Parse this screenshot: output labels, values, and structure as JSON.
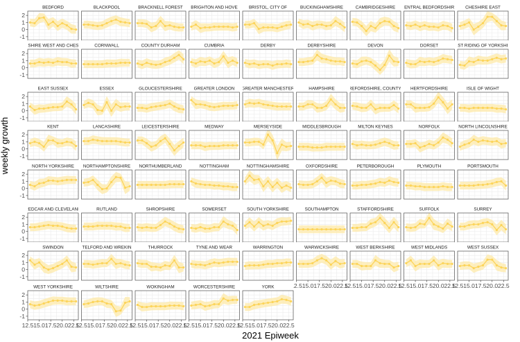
{
  "chart_data": {
    "type": "line",
    "xlabel": "2021 Epiweek",
    "ylabel": "weekly growth",
    "x": [
      13,
      14,
      15,
      16,
      17,
      18,
      19,
      20,
      21,
      22,
      23
    ],
    "xlim": [
      12.5,
      23.5
    ],
    "ylim": [
      -1.5,
      2.6
    ],
    "x_ticks": [
      12.5,
      15,
      17.5,
      20,
      22.5
    ],
    "x_tick_labels": [
      "12.5",
      "15.0",
      "17.5",
      "20.0",
      "22.5"
    ],
    "y_ticks": [
      -1,
      0,
      1,
      2
    ],
    "y_tick_labels": [
      "-1",
      "0",
      "1",
      "2"
    ],
    "grid": true,
    "colors": {
      "line": "#fcd45a",
      "ribbon": "#fde9a8",
      "panel_border": "#4d4d4d",
      "strip_bg": "#ffffff",
      "grid": "#ebebeb"
    },
    "panels": [
      {
        "name": "BEDFORD",
        "values": [
          1.0,
          0.9,
          1.6,
          1.7,
          0.7,
          1.1,
          0.5,
          0.9,
          0.6,
          0.1,
          0.0
        ]
      },
      {
        "name": "BLACKPOOL",
        "values": [
          0.7,
          0.7,
          0.6,
          0.5,
          0.6,
          0.9,
          1.2,
          1.4,
          1.1,
          1.0,
          0.9
        ]
      },
      {
        "name": "BRACKNELL FOREST",
        "values": [
          0.9,
          0.9,
          0.8,
          0.3,
          0.5,
          1.2,
          0.5,
          0.6,
          0.4,
          0.3,
          0.3
        ]
      },
      {
        "name": "BRIGHTON AND HOVE",
        "values": [
          0.4,
          0.7,
          0.2,
          0.3,
          0.3,
          0.4,
          0.4,
          0.4,
          0.4,
          0.3,
          0.4
        ]
      },
      {
        "name": "BRISTOL, CITY OF",
        "values": [
          0.7,
          0.7,
          0.9,
          0.1,
          0.3,
          0.3,
          0.3,
          0.2,
          0.4,
          0.6,
          0.7
        ]
      },
      {
        "name": "BUCKINGHAMSHIRE",
        "values": [
          1.0,
          0.7,
          0.8,
          0.5,
          0.7,
          0.7,
          0.5,
          0.6,
          1.2,
          0.8,
          0.3
        ]
      },
      {
        "name": "CAMBRIDGESHIRE",
        "values": [
          1.1,
          1.0,
          0.5,
          -0.2,
          0.5,
          0.2,
          0.9,
          1.2,
          1.1,
          0.5,
          0.2
        ]
      },
      {
        "name": "CENTRAL BEDFORDSHIRE",
        "values": [
          0.6,
          0.5,
          0.7,
          0.4,
          0.6,
          0.4,
          0.4,
          0.3,
          0.6,
          0.5,
          0.2
        ]
      },
      {
        "name": "CHESHIRE EAST",
        "values": [
          0.5,
          0.7,
          1.0,
          0.0,
          0.4,
          0.9,
          1.8,
          1.8,
          1.2,
          0.6,
          0.5
        ]
      },
      {
        "name": "CHESHIRE WEST AND CHESTER",
        "values": [
          0.6,
          0.6,
          0.8,
          0.7,
          0.8,
          0.7,
          0.9,
          0.8,
          0.8,
          0.6,
          0.6
        ]
      },
      {
        "name": "CORNWALL",
        "values": [
          0.5,
          0.5,
          0.5,
          0.5,
          0.5,
          0.6,
          0.6,
          0.6,
          0.7,
          0.7,
          0.7
        ]
      },
      {
        "name": "COUNTY DURHAM",
        "values": [
          0.6,
          0.4,
          0.7,
          0.5,
          0.4,
          0.5,
          0.8,
          1.0,
          1.4,
          1.8,
          1.2
        ]
      },
      {
        "name": "CUMBRIA",
        "values": [
          0.8,
          0.6,
          0.9,
          0.8,
          1.0,
          0.6,
          0.8,
          1.6,
          0.7,
          1.0,
          0.7
        ]
      },
      {
        "name": "DERBY",
        "values": [
          0.7,
          0.5,
          0.6,
          0.4,
          0.5,
          0.5,
          0.3,
          0.5,
          0.5,
          0.6,
          0.5
        ]
      },
      {
        "name": "DERBYSHIRE",
        "values": [
          0.8,
          0.8,
          0.9,
          1.0,
          1.8,
          1.3,
          1.2,
          1.0,
          0.9,
          0.9,
          0.8
        ]
      },
      {
        "name": "DEVON",
        "values": [
          0.6,
          0.5,
          0.9,
          1.0,
          0.8,
          0.3,
          -0.3,
          0.4,
          1.7,
          0.9,
          0.8
        ]
      },
      {
        "name": "DORSET",
        "values": [
          0.7,
          0.5,
          0.5,
          0.9,
          0.8,
          0.9,
          0.8,
          1.0,
          1.3,
          1.2,
          1.1
        ]
      },
      {
        "name": "EAST RIDING OF YORKSHIRE",
        "values": [
          0.4,
          0.3,
          0.9,
          0.8,
          1.1,
          1.0,
          1.0,
          1.2,
          1.4,
          1.2,
          1.3
        ]
      },
      {
        "name": "EAST SUSSEX",
        "values": [
          0.6,
          0.1,
          0.3,
          0.3,
          0.4,
          0.5,
          0.5,
          0.6,
          1.3,
          0.9,
          0.2
        ]
      },
      {
        "name": "ESSEX",
        "values": [
          0.8,
          1.1,
          0.9,
          0.1,
          0.0,
          1.2,
          0.0,
          0.9,
          0.5,
          0.6,
          0.6
        ]
      },
      {
        "name": "GLOUCESTERSHIRE",
        "values": [
          0.4,
          0.4,
          0.3,
          0.5,
          0.6,
          0.7,
          0.8,
          1.0,
          0.6,
          0.3,
          0.2
        ]
      },
      {
        "name": "GREATER LONDON",
        "values": [
          1.5,
          0.9,
          0.9,
          0.8,
          0.6,
          0.5,
          0.6,
          0.7,
          0.7,
          0.7,
          0.8
        ]
      },
      {
        "name": "GREATER MANCHESTER",
        "values": [
          0.9,
          1.1,
          1.0,
          1.1,
          0.9,
          0.8,
          0.7,
          0.6,
          0.6,
          0.6,
          0.6
        ]
      },
      {
        "name": "HAMPSHIRE",
        "values": [
          0.6,
          0.6,
          0.9,
          0.9,
          0.4,
          0.4,
          0.7,
          1.6,
          0.9,
          0.4,
          0.4
        ]
      },
      {
        "name": "HEREFORDSHIRE, COUNTY OF",
        "values": [
          0.7,
          0.6,
          0.4,
          0.4,
          0.9,
          0.2,
          0.4,
          0.4,
          0.4,
          0.8,
          0.3
        ]
      },
      {
        "name": "HERTFORDSHIRE",
        "values": [
          0.9,
          0.9,
          0.4,
          0.4,
          0.4,
          0.5,
          1.0,
          1.9,
          1.2,
          0.3,
          0.9
        ]
      },
      {
        "name": "ISLE OF WIGHT",
        "values": [
          0.4,
          0.4,
          0.3,
          0.4,
          0.4,
          0.4,
          0.4,
          0.4,
          0.3,
          0.3,
          0.2
        ]
      },
      {
        "name": "KENT",
        "values": [
          0.8,
          1.0,
          0.8,
          0.3,
          1.2,
          1.2,
          0.8,
          0.8,
          1.0,
          0.9,
          0.4
        ]
      },
      {
        "name": "LANCASHIRE",
        "values": [
          1.1,
          1.1,
          1.3,
          1.2,
          1.1,
          1.1,
          1.1,
          1.1,
          1.0,
          0.9,
          0.9
        ]
      },
      {
        "name": "LEICESTERSHIRE",
        "values": [
          1.2,
          1.2,
          0.8,
          0.3,
          0.5,
          1.1,
          1.5,
          0.7,
          -0.2,
          0.4,
          0.9
        ]
      },
      {
        "name": "MEDWAY",
        "values": [
          0.5,
          0.5,
          0.5,
          0.3,
          0.4,
          0.4,
          0.4,
          0.5,
          0.5,
          0.5,
          0.5
        ]
      },
      {
        "name": "MERSEYSIDE",
        "values": [
          0.9,
          0.9,
          1.0,
          1.0,
          0.6,
          2.0,
          1.2,
          -0.6,
          0.6,
          0.3,
          0.4
        ]
      },
      {
        "name": "MIDDLESBROUGH",
        "values": [
          0.3,
          0.3,
          0.3,
          0.2,
          0.2,
          0.2,
          0.3,
          0.3,
          0.3,
          0.3,
          0.3
        ]
      },
      {
        "name": "MILTON KEYNES",
        "values": [
          0.7,
          0.5,
          0.6,
          0.5,
          0.5,
          0.6,
          0.8,
          1.0,
          0.8,
          0.5,
          0.5
        ]
      },
      {
        "name": "NORFOLK",
        "values": [
          0.7,
          0.7,
          0.8,
          0.2,
          0.4,
          0.7,
          0.5,
          0.9,
          1.6,
          1.3,
          0.8
        ]
      },
      {
        "name": "NORTH LINCOLNSHIRE",
        "values": [
          0.3,
          0.6,
          0.8,
          1.3,
          1.0,
          1.2,
          1.1,
          1.0,
          1.1,
          0.7,
          0.8
        ]
      },
      {
        "name": "NORTH YORKSHIRE",
        "values": [
          0.5,
          0.3,
          0.7,
          0.8,
          1.1,
          1.1,
          1.0,
          1.1,
          1.2,
          1.2,
          1.2
        ]
      },
      {
        "name": "NORTHAMPTONSHIRE",
        "values": [
          0.8,
          0.9,
          1.2,
          0.5,
          -0.1,
          0.0,
          0.9,
          1.6,
          1.5,
          0.1,
          0.3
        ]
      },
      {
        "name": "NORTHUMBERLAND",
        "values": [
          0.5,
          0.5,
          0.5,
          0.5,
          0.5,
          0.5,
          0.5,
          0.6,
          0.6,
          0.6,
          0.6
        ]
      },
      {
        "name": "NOTTINGHAM",
        "values": [
          1.0,
          0.7,
          0.6,
          0.5,
          0.5,
          0.4,
          0.4,
          0.3,
          0.3,
          0.2,
          0.2
        ]
      },
      {
        "name": "NOTTINGHAMSHIRE",
        "values": [
          1.0,
          1.8,
          1.2,
          1.3,
          0.3,
          1.0,
          0.2,
          0.8,
          0.1,
          0.4,
          0.1
        ]
      },
      {
        "name": "OXFORDSHIRE",
        "values": [
          0.6,
          0.5,
          0.5,
          0.6,
          1.0,
          1.5,
          0.8,
          1.1,
          1.0,
          0.7,
          0.6
        ]
      },
      {
        "name": "PETERBOROUGH",
        "values": [
          0.4,
          0.4,
          0.5,
          0.5,
          0.6,
          0.7,
          0.9,
          0.8,
          1.1,
          0.9,
          0.8
        ]
      },
      {
        "name": "PLYMOUTH",
        "values": [
          0.4,
          0.4,
          0.3,
          0.3,
          0.2,
          0.2,
          0.2,
          0.2,
          0.3,
          0.2,
          0.2
        ]
      },
      {
        "name": "PORTSMOUTH",
        "values": [
          0.4,
          0.4,
          0.4,
          0.4,
          0.5,
          0.5,
          0.6,
          0.7,
          0.9,
          1.0,
          0.4
        ]
      },
      {
        "name": "REDCAR AND CLEVELAND",
        "values": [
          0.6,
          0.6,
          0.7,
          0.8,
          0.9,
          0.8,
          0.8,
          0.7,
          0.5,
          0.4,
          0.4
        ]
      },
      {
        "name": "RUTLAND",
        "values": [
          0.7,
          0.7,
          0.7,
          0.8,
          0.8,
          0.8,
          0.8,
          0.7,
          0.7,
          0.5,
          0.5
        ]
      },
      {
        "name": "SHROPSHIRE",
        "values": [
          0.6,
          0.5,
          0.6,
          0.5,
          0.5,
          0.9,
          1.4,
          1.1,
          0.7,
          0.4,
          0.3
        ]
      },
      {
        "name": "SOMERSET",
        "values": [
          0.5,
          0.4,
          0.6,
          0.4,
          0.4,
          0.6,
          0.6,
          1.4,
          1.0,
          0.8,
          0.2
        ]
      },
      {
        "name": "SOUTH YORKSHIRE",
        "values": [
          0.8,
          1.3,
          0.7,
          1.3,
          0.8,
          1.0,
          0.8,
          1.2,
          1.4,
          1.4,
          1.5
        ]
      },
      {
        "name": "SOUTHAMPTON",
        "values": [
          0.3,
          0.3,
          0.3,
          0.3,
          0.3,
          0.3,
          0.3,
          0.3,
          0.3,
          0.3,
          0.3
        ]
      },
      {
        "name": "STAFFORDSHIRE",
        "values": [
          0.5,
          0.5,
          0.6,
          0.6,
          1.1,
          1.3,
          1.9,
          1.2,
          0.5,
          1.3,
          0.6
        ]
      },
      {
        "name": "SUFFOLK",
        "values": [
          0.6,
          0.5,
          0.6,
          1.1,
          1.0,
          1.9,
          1.0,
          0.7,
          0.4,
          1.1,
          0.7
        ]
      },
      {
        "name": "SURREY",
        "values": [
          0.7,
          0.7,
          0.9,
          1.0,
          1.0,
          1.2,
          1.3,
          1.0,
          0.2,
          0.9,
          0.3
        ]
      },
      {
        "name": "SWINDON",
        "values": [
          1.3,
          0.7,
          1.0,
          0.3,
          0.0,
          0.2,
          0.5,
          0.8,
          1.3,
          0.4,
          0.3
        ]
      },
      {
        "name": "TELFORD AND WREKIN",
        "values": [
          0.8,
          0.8,
          0.7,
          0.8,
          0.9,
          0.9,
          1.5,
          0.8,
          0.9,
          0.7,
          0.6
        ]
      },
      {
        "name": "THURROCK",
        "values": [
          0.9,
          0.8,
          0.8,
          0.4,
          0.4,
          0.3,
          0.6,
          0.5,
          1.3,
          0.3,
          0.3
        ]
      },
      {
        "name": "TYNE AND WEAR",
        "values": [
          0.8,
          0.7,
          0.7,
          0.6,
          0.8,
          1.0,
          0.9,
          1.0,
          1.1,
          1.1,
          1.1
        ]
      },
      {
        "name": "WARRINGTON",
        "values": [
          0.5,
          0.6,
          0.6,
          0.6,
          0.7,
          0.8,
          0.8,
          0.9,
          0.9,
          1.0,
          1.0
        ]
      },
      {
        "name": "WARWICKSHIRE",
        "values": [
          0.8,
          0.8,
          0.8,
          0.9,
          1.3,
          1.6,
          1.3,
          0.7,
          1.2,
          0.8,
          0.9
        ]
      },
      {
        "name": "WEST BERKSHIRE",
        "values": [
          0.8,
          0.8,
          0.5,
          0.5,
          0.5,
          1.3,
          0.9,
          0.8,
          0.8,
          0.3,
          0.5
        ]
      },
      {
        "name": "WEST MIDLANDS",
        "values": [
          0.9,
          1.3,
          0.5,
          0.8,
          0.8,
          0.8,
          1.3,
          0.6,
          0.9,
          0.8,
          0.8
        ]
      },
      {
        "name": "WEST SUSSEX",
        "values": [
          0.5,
          0.6,
          0.6,
          0.2,
          0.4,
          0.6,
          1.4,
          1.4,
          0.6,
          0.3,
          0.2
        ]
      },
      {
        "name": "WEST YORKSHIRE",
        "values": [
          0.7,
          0.5,
          0.6,
          0.8,
          1.0,
          1.2,
          1.2,
          1.2,
          1.1,
          1.1,
          1.1
        ]
      },
      {
        "name": "WILTSHIRE",
        "values": [
          0.7,
          0.8,
          1.0,
          1.1,
          1.1,
          0.8,
          0.7,
          -0.3,
          -0.2,
          0.9,
          1.1
        ]
      },
      {
        "name": "WOKINGHAM",
        "values": [
          0.6,
          0.3,
          0.3,
          0.4,
          0.4,
          0.4,
          0.4,
          0.5,
          0.5,
          0.5,
          0.4
        ]
      },
      {
        "name": "WORCESTERSHIRE",
        "values": [
          0.5,
          0.6,
          0.7,
          0.4,
          0.5,
          0.7,
          0.7,
          1.5,
          1.2,
          1.3,
          1.3
        ]
      },
      {
        "name": "YORK",
        "values": [
          0.3,
          0.3,
          0.6,
          0.7,
          0.8,
          0.9,
          1.0,
          1.1,
          1.4,
          1.3,
          1.1
        ]
      }
    ]
  }
}
